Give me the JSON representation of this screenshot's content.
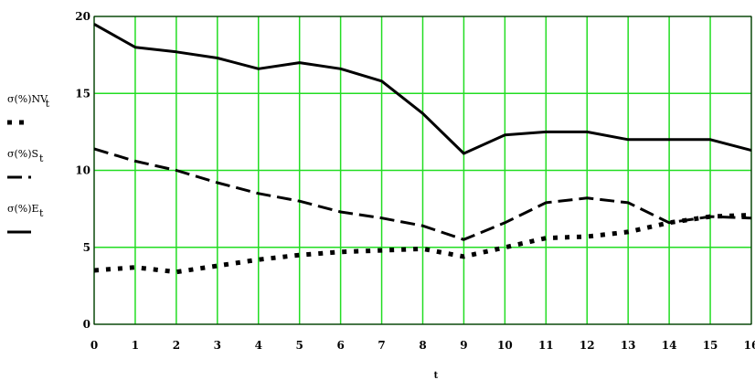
{
  "chart_data": {
    "type": "line",
    "x": [
      0,
      1,
      2,
      3,
      4,
      5,
      6,
      7,
      8,
      9,
      10,
      11,
      12,
      13,
      14,
      15,
      16
    ],
    "xlabel": "t",
    "xlim": [
      0,
      16
    ],
    "ylim": [
      0,
      20
    ],
    "x_ticks": [
      "0",
      "1",
      "2",
      "3",
      "4",
      "5",
      "6",
      "7",
      "8",
      "9",
      "10",
      "11",
      "12",
      "13",
      "14",
      "15",
      "16"
    ],
    "y_ticks": [
      "0",
      "5",
      "10",
      "15",
      "20"
    ],
    "grid": true,
    "grid_color": "#22dd22",
    "legend_position": "left",
    "series": [
      {
        "name": "σ(%)NV",
        "subscript": "t",
        "style": "dotted",
        "values": [
          3.5,
          3.7,
          3.4,
          3.8,
          4.2,
          4.5,
          4.7,
          4.8,
          4.9,
          4.4,
          5.0,
          5.6,
          5.7,
          6.0,
          6.6,
          7.0,
          7.1
        ]
      },
      {
        "name": "σ(%)S",
        "subscript": "t",
        "style": "dashed",
        "values": [
          11.4,
          10.6,
          10.0,
          9.2,
          8.5,
          8.0,
          7.3,
          6.9,
          6.4,
          5.5,
          6.6,
          7.9,
          8.2,
          7.9,
          6.6,
          7.0,
          6.9
        ]
      },
      {
        "name": "σ(%)E",
        "subscript": "t",
        "style": "solid",
        "values": [
          19.5,
          18.0,
          17.7,
          17.3,
          16.6,
          17.0,
          16.6,
          15.8,
          13.7,
          11.1,
          12.3,
          12.5,
          12.5,
          12.0,
          12.0,
          12.0,
          11.3
        ]
      }
    ]
  }
}
